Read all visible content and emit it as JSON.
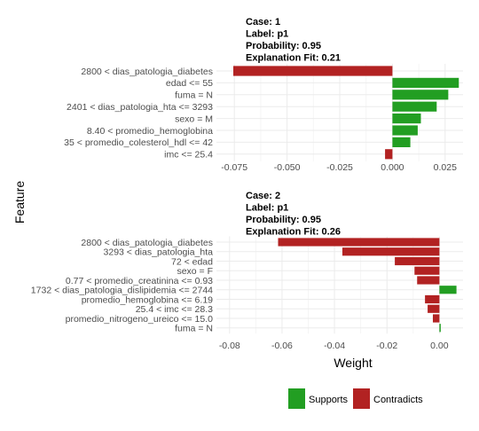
{
  "y_axis_title": "Feature",
  "x_axis_title": "Weight",
  "legend": {
    "items": [
      {
        "label": "Supports",
        "color": "#229e22"
      },
      {
        "label": "Contradicts",
        "color": "#b22222"
      }
    ]
  },
  "colors": {
    "supports": "#229e22",
    "contradicts": "#b22222",
    "grid": "#ebebeb",
    "axis_text": "#4d4d4d"
  },
  "chart_data": [
    {
      "type": "bar",
      "orientation": "horizontal",
      "header": [
        "Case: 1",
        "Label: p1",
        "Probability: 0.95",
        "Explanation Fit: 0.21"
      ],
      "xlim": [
        -0.0835,
        0.0335
      ],
      "xticks": [
        -0.075,
        -0.05,
        -0.025,
        0.0,
        0.025
      ],
      "xtick_labels": [
        "-0.075",
        "-0.050",
        "-0.025",
        "0.000",
        "0.025"
      ],
      "categories": [
        "2800 < dias_patologia_diabetes",
        "edad <= 55",
        "fuma = N",
        "2401 < dias_patologia_hta <= 3293",
        "sexo = M",
        "8.40 < promedio_hemoglobina",
        "35 < promedio_colesterol_hdl <= 42",
        "imc <= 25.4"
      ],
      "values": [
        -0.0755,
        0.0315,
        0.0265,
        0.021,
        0.0135,
        0.012,
        0.0085,
        -0.0035
      ]
    },
    {
      "type": "bar",
      "orientation": "horizontal",
      "header": [
        "Case: 2",
        "Label: p1",
        "Probability: 0.95",
        "Explanation Fit: 0.26"
      ],
      "xlim": [
        -0.085,
        0.009
      ],
      "xticks": [
        -0.08,
        -0.06,
        -0.04,
        -0.02,
        0.0
      ],
      "xtick_labels": [
        "-0.08",
        "-0.06",
        "-0.04",
        "-0.02",
        "0.00"
      ],
      "categories": [
        "2800 < dias_patologia_diabetes",
        "3293 < dias_patologia_hta",
        "72 < edad",
        "sexo = F",
        "0.77 < promedio_creatinina <= 0.93",
        "1732 < dias_patologia_dislipidemia <= 2744",
        "promedio_hemoglobina <= 6.19",
        "25.4 < imc <= 28.3",
        "promedio_nitrogeno_ureico <= 15.0",
        "fuma = N"
      ],
      "values": [
        -0.0615,
        -0.037,
        -0.017,
        -0.0095,
        -0.0085,
        0.0065,
        -0.0055,
        -0.0045,
        -0.0025,
        0.0005
      ]
    }
  ]
}
